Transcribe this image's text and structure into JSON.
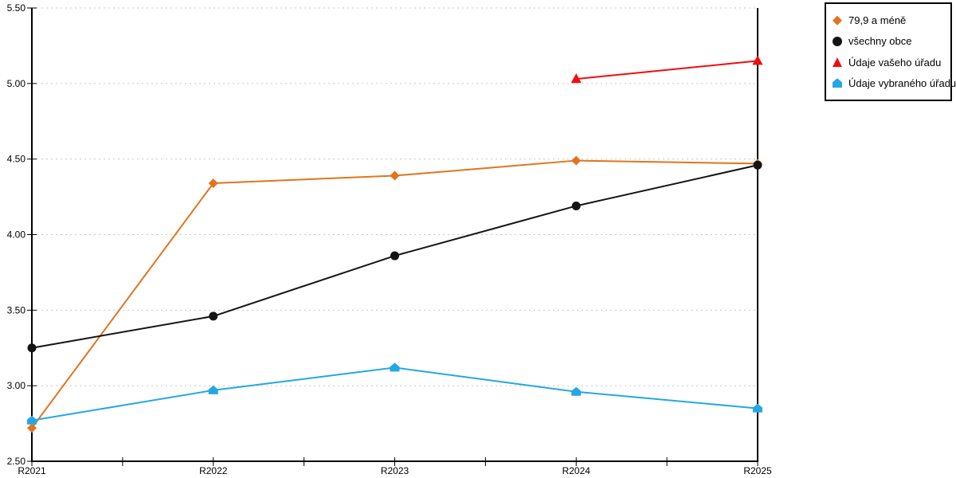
{
  "chart_data": {
    "type": "line",
    "categories": [
      "R2021",
      "R2022",
      "R2023",
      "R2024",
      "R2025"
    ],
    "series": [
      {
        "name": "79,9 a méně",
        "marker": "diamond",
        "color": "#E0751C",
        "values": [
          2.72,
          4.34,
          4.39,
          4.49,
          4.47
        ]
      },
      {
        "name": "všechny obce",
        "marker": "circle",
        "color": "#141414",
        "values": [
          3.25,
          3.46,
          3.86,
          4.19,
          4.46
        ]
      },
      {
        "name": "Údaje vašeho úřadu",
        "marker": "triangle",
        "color": "#F20D0D",
        "values": [
          null,
          null,
          null,
          5.03,
          5.15
        ]
      },
      {
        "name": "Údaje vybraného úřadu",
        "marker": "triangle-flat",
        "color": "#24A7E4",
        "values": [
          2.77,
          2.97,
          3.12,
          2.96,
          2.85
        ]
      }
    ],
    "title": "",
    "xlabel": "",
    "ylabel": "",
    "ylim": [
      2.5,
      5.5
    ],
    "ytick_step": 0.5,
    "ytick_labels": [
      "2.50",
      "3.00",
      "3.50",
      "4.00",
      "4.50",
      "5.00",
      "5.50"
    ],
    "grid": "horizontal-dotted",
    "grid_color": "#C8C8C8",
    "axis_color": "#000000",
    "legend_position": "top-right"
  }
}
